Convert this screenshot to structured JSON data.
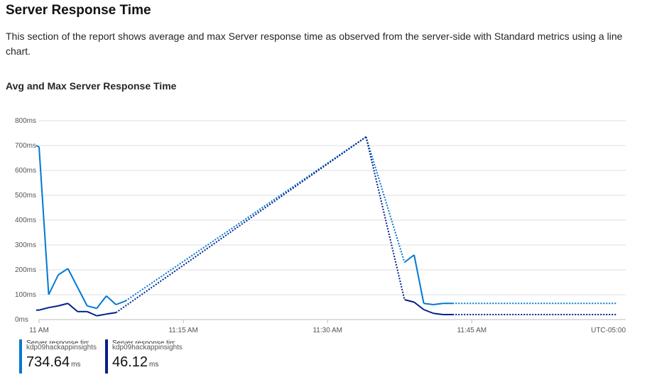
{
  "section": {
    "title": "Server Response Time",
    "description": "This section of the report shows average and max Server response time as observed from the server-side with Standard metrics using a line chart."
  },
  "chart_title": "Avg and Max Server Response Time",
  "chart_data": {
    "type": "line",
    "title": "Avg and Max Server Response Time",
    "y_ticks": [
      "0ms",
      "100ms",
      "200ms",
      "300ms",
      "400ms",
      "500ms",
      "600ms",
      "700ms",
      "800ms"
    ],
    "ylim": [
      0,
      800
    ],
    "x_ticks": [
      {
        "label": "11 AM",
        "minute": 0
      },
      {
        "label": "11:15 AM",
        "minute": 15
      },
      {
        "label": "11:30 AM",
        "minute": 30
      },
      {
        "label": "11:45 AM",
        "minute": 45
      }
    ],
    "timezone_label": "UTC-05:00",
    "xlim": [
      0,
      61
    ],
    "grid": true,
    "series": [
      {
        "name": "Server response time...",
        "resource": "kdp09hackappinsights",
        "color": "#0078d4",
        "values": [
          [
            -0.3,
            700
          ],
          [
            0,
            695
          ],
          [
            1,
            100
          ],
          [
            2,
            180
          ],
          [
            3,
            205
          ],
          [
            4,
            130
          ],
          [
            5,
            55
          ],
          [
            6,
            45
          ],
          [
            7,
            95
          ],
          [
            8,
            60
          ],
          [
            9,
            75
          ],
          [
            34,
            735
          ],
          [
            38,
            230
          ],
          [
            39,
            260
          ],
          [
            40,
            65
          ],
          [
            41,
            60
          ],
          [
            42,
            65
          ],
          [
            43,
            65
          ],
          [
            60,
            65
          ]
        ]
      },
      {
        "name": "Server response time...",
        "resource": "kdp09hackappinsights",
        "color": "#001f8a",
        "values": [
          [
            -0.3,
            38
          ],
          [
            0,
            38
          ],
          [
            1,
            48
          ],
          [
            2,
            55
          ],
          [
            3,
            65
          ],
          [
            4,
            32
          ],
          [
            5,
            32
          ],
          [
            6,
            15
          ],
          [
            7,
            22
          ],
          [
            8,
            28
          ],
          [
            34,
            735
          ],
          [
            38,
            80
          ],
          [
            39,
            70
          ],
          [
            40,
            40
          ],
          [
            41,
            25
          ],
          [
            42,
            20
          ],
          [
            43,
            20
          ],
          [
            60,
            20
          ]
        ]
      }
    ]
  },
  "legend": [
    {
      "name": "Server response time...",
      "resource": "kdp09hackappinsights",
      "value": "734.64",
      "unit": "ms",
      "color": "#0078d4"
    },
    {
      "name": "Server response time...",
      "resource": "kdp09hackappinsights",
      "value": "46.12",
      "unit": "ms",
      "color": "#001f8a"
    }
  ]
}
